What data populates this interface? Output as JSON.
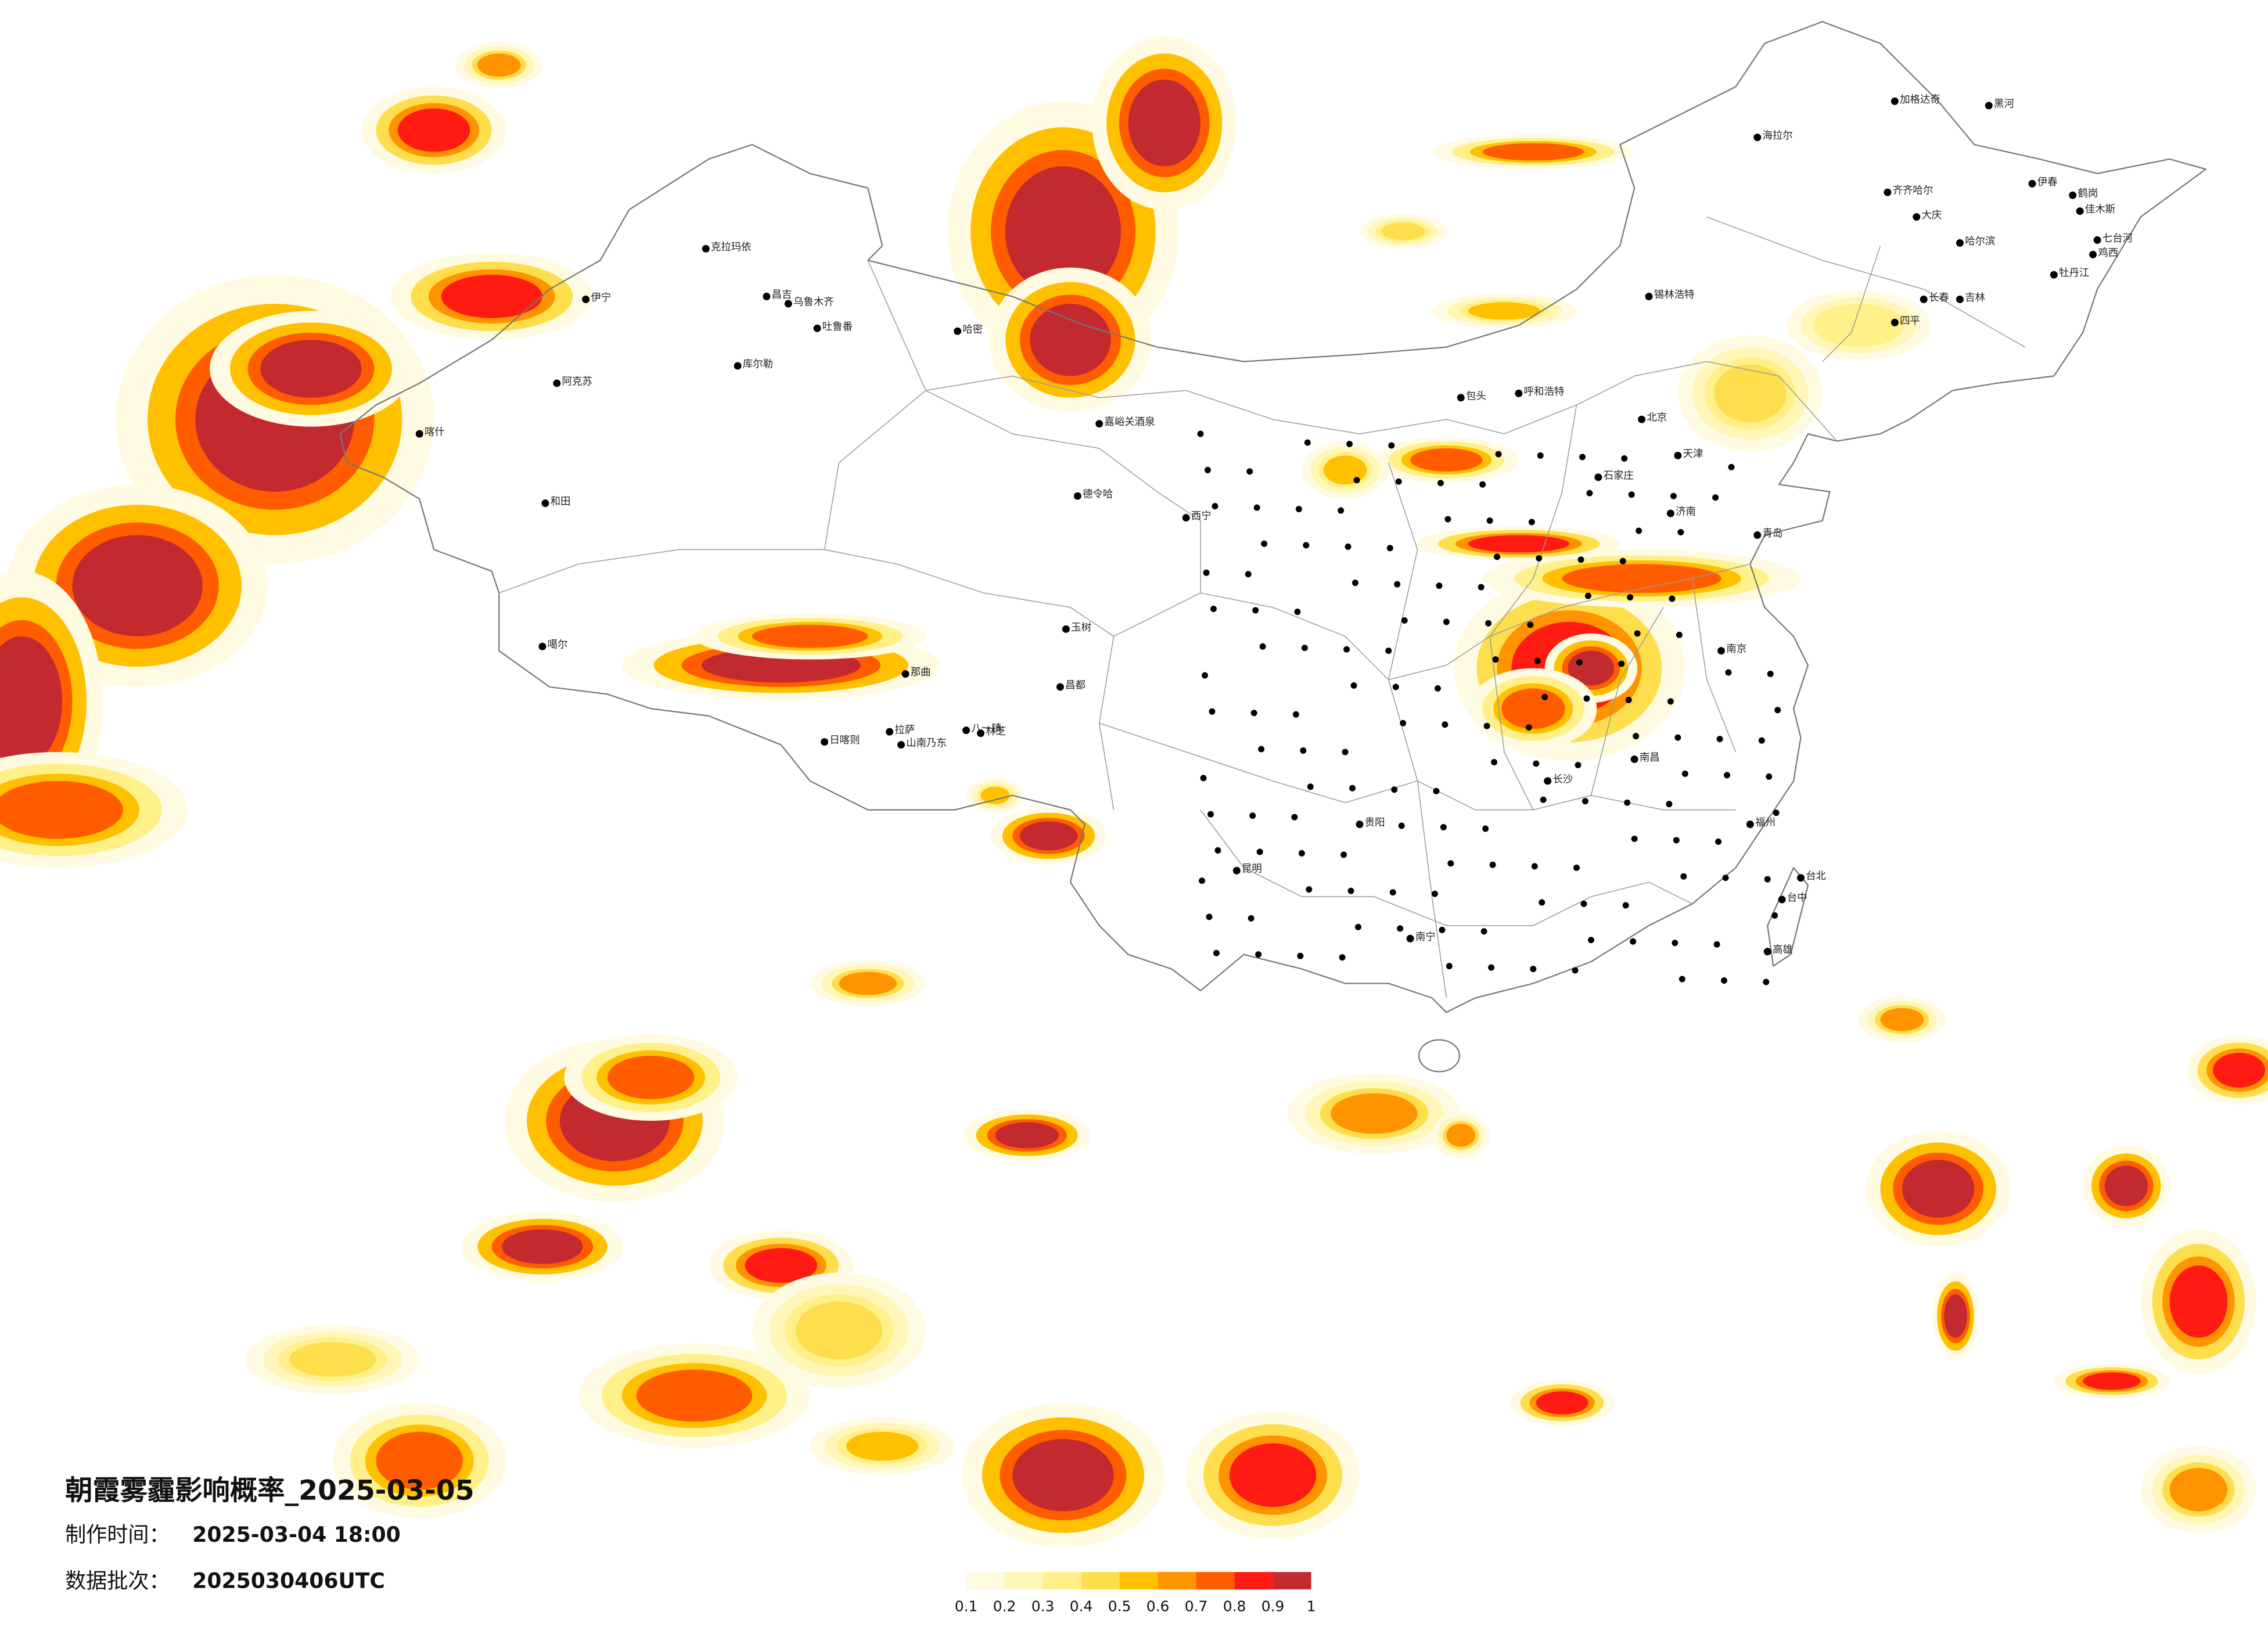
{
  "title": "朝霞雾霾影响概率_2025-03-05",
  "made_label": "制作时间：",
  "made_time": "2025-03-04 18:00",
  "batch_label": "数据批次：",
  "batch": "2025030406UTC",
  "legend": {
    "colors": [
      "#fffbe3",
      "#fff6b8",
      "#fff08a",
      "#ffde4d",
      "#ffc000",
      "#ff9400",
      "#ff5c00",
      "#ff1a12",
      "#c22a30"
    ],
    "ticks": [
      0.1,
      0.2,
      0.3,
      0.4,
      0.5,
      0.6,
      0.7,
      0.8,
      0.9,
      1
    ]
  },
  "cities": [
    "克拉玛依",
    "伊宁",
    "昌吉",
    "乌鲁木齐",
    "吐鲁番",
    "阿克苏",
    "库尔勒",
    "喀什",
    "和田",
    "哈密",
    "嘉峪关酒泉",
    "德令哈",
    "玉树",
    "那曲",
    "日喀则",
    "拉萨",
    "山南乃东",
    "八一镇",
    "林芝",
    "昌都",
    "噶尔",
    "海拉尔",
    "加格达奇",
    "黑河",
    "齐齐哈尔",
    "大庆",
    "哈尔滨",
    "伊春",
    "鹤岗",
    "佳木斯",
    "七台河",
    "鸡西",
    "牡丹江",
    "长春",
    "吉林",
    "四平",
    "锡林浩特",
    "呼和浩特",
    "包头",
    "北京",
    "天津",
    "石家庄",
    "西宁",
    "贵阳",
    "昆明",
    "南宁",
    "长沙",
    "南昌",
    "福州",
    "南京",
    "济南",
    "青岛",
    "台北",
    "台中",
    "高雄"
  ]
}
